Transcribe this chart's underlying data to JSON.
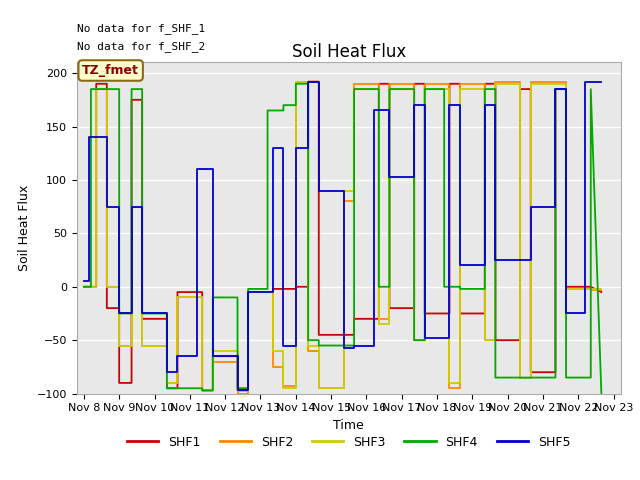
{
  "title": "Soil Heat Flux",
  "ylabel": "Soil Heat Flux",
  "xlabel": "Time",
  "annotations": [
    "No data for f_SHF_1",
    "No data for f_SHF_2"
  ],
  "legend_label": "TZ_fmet",
  "ylim": [
    -100,
    210
  ],
  "yticks": [
    -100,
    -50,
    0,
    50,
    100,
    150,
    200
  ],
  "xtick_labels": [
    "Nov 8",
    "Nov 9",
    "Nov 10",
    "Nov 11",
    "Nov 12",
    "Nov 13",
    "Nov 14",
    "Nov 15",
    "Nov 16",
    "Nov 17",
    "Nov 18",
    "Nov 19",
    "Nov 20",
    "Nov 21",
    "Nov 22",
    "Nov 23"
  ],
  "series": {
    "SHF1": {
      "color": "#cc0000",
      "x": [
        8.0,
        8.35,
        8.35,
        8.65,
        8.65,
        9.0,
        9.0,
        9.35,
        9.35,
        9.65,
        9.65,
        10.35,
        10.35,
        10.65,
        10.65,
        11.35,
        11.35,
        11.65,
        11.65,
        12.35,
        12.35,
        12.65,
        12.65,
        13.35,
        13.35,
        14.0,
        14.0,
        14.35,
        14.35,
        14.65,
        14.65,
        15.35,
        15.35,
        15.65,
        15.65,
        16.35,
        16.35,
        16.65,
        16.65,
        17.35,
        17.35,
        17.65,
        17.65,
        18.35,
        18.35,
        18.65,
        18.65,
        19.35,
        19.35,
        19.65,
        19.65,
        20.35,
        20.35,
        20.65,
        20.65,
        21.35,
        21.35,
        21.65,
        21.65,
        22.35,
        22.35,
        22.65
      ],
      "y": [
        0,
        0,
        190,
        190,
        -20,
        -20,
        -90,
        -90,
        175,
        175,
        -30,
        -30,
        -95,
        -95,
        -5,
        -5,
        -97,
        -97,
        -65,
        -65,
        -97,
        -97,
        -5,
        -5,
        -2,
        -2,
        0,
        0,
        192,
        192,
        -45,
        -45,
        -45,
        -45,
        -30,
        -30,
        190,
        190,
        -20,
        -20,
        190,
        190,
        -25,
        -25,
        190,
        190,
        -25,
        -25,
        190,
        190,
        -50,
        -50,
        185,
        185,
        -80,
        -80,
        185,
        185,
        0,
        0,
        0,
        -5
      ]
    },
    "SHF2": {
      "color": "#ff8800",
      "x": [
        8.0,
        8.35,
        8.35,
        8.65,
        8.65,
        9.0,
        9.0,
        9.35,
        9.35,
        9.65,
        9.65,
        10.35,
        10.35,
        10.65,
        10.65,
        11.35,
        11.35,
        11.65,
        11.65,
        12.35,
        12.35,
        12.65,
        12.65,
        13.35,
        13.35,
        13.65,
        13.65,
        14.0,
        14.0,
        14.35,
        14.35,
        14.65,
        14.65,
        15.35,
        15.35,
        15.65,
        15.65,
        16.35,
        16.35,
        16.65,
        16.65,
        17.35,
        17.35,
        17.65,
        17.65,
        18.35,
        18.35,
        18.65,
        18.65,
        19.35,
        19.35,
        19.65,
        19.65,
        20.35,
        20.35,
        20.65,
        20.65,
        21.35,
        21.35,
        21.65,
        21.65,
        22.35,
        22.35,
        22.65
      ],
      "y": [
        0,
        0,
        185,
        185,
        0,
        0,
        -55,
        -55,
        75,
        75,
        -55,
        -55,
        -90,
        -90,
        -10,
        -10,
        -97,
        -97,
        -70,
        -70,
        -100,
        -100,
        -5,
        -5,
        -75,
        -75,
        -93,
        -93,
        192,
        192,
        -60,
        -60,
        -95,
        -95,
        80,
        80,
        190,
        190,
        -30,
        -30,
        190,
        190,
        -50,
        -50,
        190,
        190,
        -95,
        -95,
        190,
        190,
        -50,
        -50,
        192,
        192,
        -85,
        -85,
        192,
        192,
        192,
        192,
        -2,
        -2,
        -3,
        -3
      ]
    },
    "SHF3": {
      "color": "#cccc00",
      "x": [
        8.0,
        8.35,
        8.35,
        8.65,
        8.65,
        9.0,
        9.0,
        9.35,
        9.35,
        9.65,
        9.65,
        10.35,
        10.35,
        10.65,
        10.65,
        11.35,
        11.35,
        11.65,
        11.65,
        12.35,
        12.35,
        12.65,
        12.65,
        13.35,
        13.35,
        13.65,
        13.65,
        14.0,
        14.0,
        14.35,
        14.35,
        14.65,
        14.65,
        15.35,
        15.35,
        15.65,
        15.65,
        16.35,
        16.35,
        16.65,
        16.65,
        17.35,
        17.35,
        17.65,
        17.65,
        18.35,
        18.35,
        18.65,
        18.65,
        19.35,
        19.35,
        19.65,
        19.65,
        20.35,
        20.35,
        20.65,
        20.65,
        21.35,
        21.35,
        21.65,
        21.65,
        22.35,
        22.35,
        22.65
      ],
      "y": [
        0,
        0,
        185,
        185,
        0,
        0,
        -55,
        -55,
        75,
        75,
        -55,
        -55,
        -90,
        -90,
        -10,
        -10,
        -97,
        -97,
        -60,
        -60,
        -95,
        -95,
        -5,
        -5,
        -60,
        -60,
        -95,
        -95,
        192,
        192,
        -55,
        -55,
        -95,
        -95,
        90,
        90,
        185,
        185,
        -35,
        -35,
        185,
        185,
        -50,
        -50,
        185,
        185,
        -90,
        -90,
        185,
        185,
        -50,
        -50,
        190,
        190,
        -85,
        -85,
        190,
        190,
        190,
        190,
        -2,
        -2,
        -2,
        -2
      ]
    },
    "SHF4": {
      "color": "#00aa00",
      "x": [
        8.0,
        8.2,
        8.2,
        8.65,
        8.65,
        9.0,
        9.0,
        9.35,
        9.35,
        9.65,
        9.65,
        10.35,
        10.35,
        10.65,
        10.65,
        11.35,
        11.35,
        11.65,
        11.65,
        12.35,
        12.35,
        12.65,
        12.65,
        13.2,
        13.2,
        13.65,
        13.65,
        14.0,
        14.0,
        14.35,
        14.35,
        14.65,
        14.65,
        15.35,
        15.35,
        15.65,
        15.65,
        16.35,
        16.35,
        16.65,
        16.65,
        17.35,
        17.35,
        17.65,
        17.65,
        18.2,
        18.2,
        18.65,
        18.65,
        19.35,
        19.35,
        19.65,
        19.65,
        20.35,
        20.35,
        20.65,
        20.65,
        21.35,
        21.35,
        21.65,
        21.65,
        22.35,
        22.35,
        22.65
      ],
      "y": [
        0,
        0,
        185,
        185,
        185,
        185,
        -25,
        -25,
        185,
        185,
        -25,
        -25,
        -95,
        -95,
        -95,
        -95,
        -97,
        -97,
        -10,
        -10,
        -95,
        -95,
        -2,
        -2,
        165,
        165,
        170,
        170,
        190,
        190,
        -50,
        -50,
        -55,
        -55,
        -55,
        -55,
        185,
        185,
        0,
        0,
        185,
        185,
        -50,
        -50,
        185,
        185,
        0,
        0,
        -2,
        -2,
        185,
        185,
        -85,
        -85,
        -85,
        -85,
        -85,
        -85,
        185,
        185,
        -85,
        -85,
        185,
        -100
      ]
    },
    "SHF5": {
      "color": "#0000cc",
      "x": [
        8.0,
        8.15,
        8.15,
        8.65,
        8.65,
        9.0,
        9.0,
        9.35,
        9.35,
        9.65,
        9.65,
        10.35,
        10.35,
        10.65,
        10.65,
        11.2,
        11.2,
        11.65,
        11.65,
        12.35,
        12.35,
        12.65,
        12.65,
        13.35,
        13.35,
        13.65,
        13.65,
        14.0,
        14.0,
        14.35,
        14.35,
        14.65,
        14.65,
        15.35,
        15.35,
        15.65,
        15.65,
        16.2,
        16.2,
        16.65,
        16.65,
        17.35,
        17.35,
        17.65,
        17.65,
        18.35,
        18.35,
        18.65,
        18.65,
        19.35,
        19.35,
        19.65,
        19.65,
        20.35,
        20.35,
        20.65,
        20.65,
        21.35,
        21.35,
        21.65,
        21.65,
        22.2,
        22.2,
        22.65
      ],
      "y": [
        5,
        5,
        140,
        140,
        75,
        75,
        -25,
        -25,
        75,
        75,
        -25,
        -25,
        -80,
        -80,
        -65,
        -65,
        110,
        110,
        -65,
        -65,
        -97,
        -97,
        -5,
        -5,
        130,
        130,
        -55,
        -55,
        130,
        130,
        192,
        192,
        90,
        90,
        -57,
        -57,
        -55,
        -55,
        165,
        165,
        103,
        103,
        170,
        170,
        -48,
        -48,
        170,
        170,
        20,
        20,
        170,
        170,
        25,
        25,
        25,
        25,
        75,
        75,
        185,
        185,
        -25,
        -25,
        192,
        192
      ]
    }
  },
  "bg_color": "#e8e8e8",
  "grid_color": "#ffffff"
}
